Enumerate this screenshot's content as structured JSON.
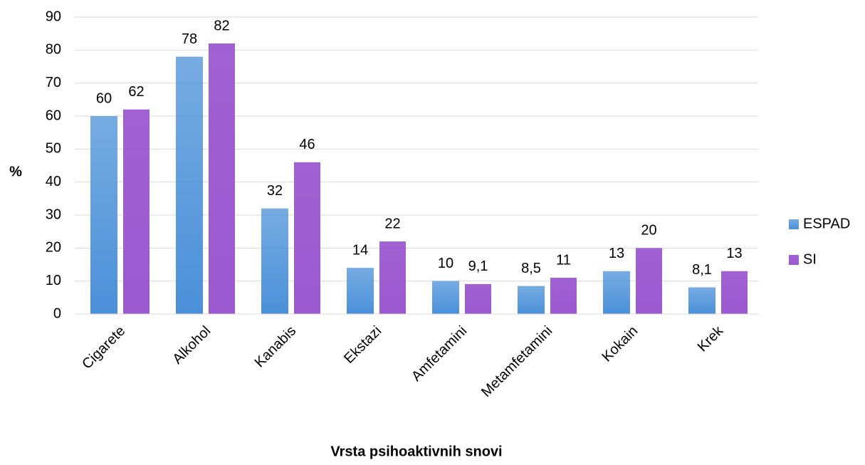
{
  "chart_data": {
    "type": "bar",
    "x_label": "Vrsta psihoaktivnih snovi",
    "y_label": "%",
    "categories": [
      "Cigarete",
      "Alkohol",
      "Kanabis",
      "Ekstazi",
      "Amfetamini",
      "Metamfetamini",
      "Kokain",
      "Krek"
    ],
    "series": [
      {
        "name": "ESPAD",
        "color": "#4a90d9",
        "values": [
          60,
          78,
          32,
          14,
          10,
          8.5,
          13,
          8.1
        ],
        "value_labels": [
          "60",
          "78",
          "32",
          "14",
          "10",
          "8,5",
          "13",
          "8,1"
        ]
      },
      {
        "name": "SI",
        "color": "#9b59d0",
        "values": [
          62,
          82,
          46,
          22,
          9.1,
          11,
          20,
          13
        ],
        "value_labels": [
          "62",
          "82",
          "46",
          "22",
          "9,1",
          "11",
          "20",
          "13"
        ]
      }
    ],
    "ylim": [
      0,
      90
    ],
    "yticks": [
      0,
      10,
      20,
      30,
      40,
      50,
      60,
      70,
      80,
      90
    ],
    "grid": true,
    "legend": "right"
  }
}
